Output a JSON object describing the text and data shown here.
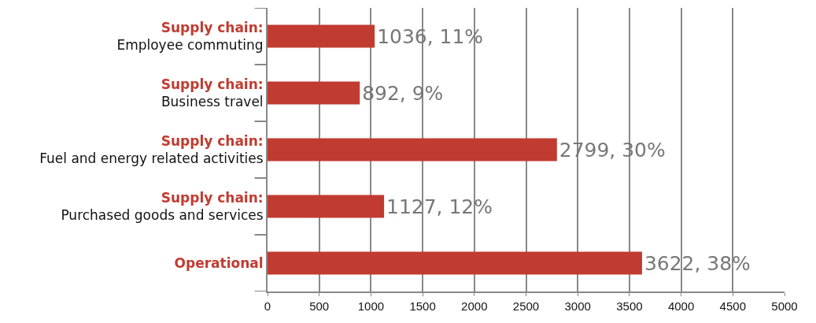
{
  "chart_data": {
    "type": "bar",
    "orientation": "horizontal",
    "categories": [
      "Supply chain:\nEmployee commuting",
      "Supply chain:\nBusiness travel",
      "Supply chain:\nFuel and energy related activities",
      "Supply chain:\nPurchased goods and services",
      "Operational"
    ],
    "values": [
      1036,
      892,
      2799,
      1127,
      3622
    ],
    "value_labels": [
      "1036, 11%",
      "892, 9%",
      "2799, 30%",
      "1127, 12%",
      "3622, 38%"
    ],
    "color": "#c13b30",
    "xlim": [
      0,
      5000
    ],
    "xticks": [
      0,
      500,
      1000,
      1500,
      2000,
      2500,
      3000,
      3500,
      4000,
      4500,
      5000
    ],
    "grid": "x",
    "legend": false
  }
}
